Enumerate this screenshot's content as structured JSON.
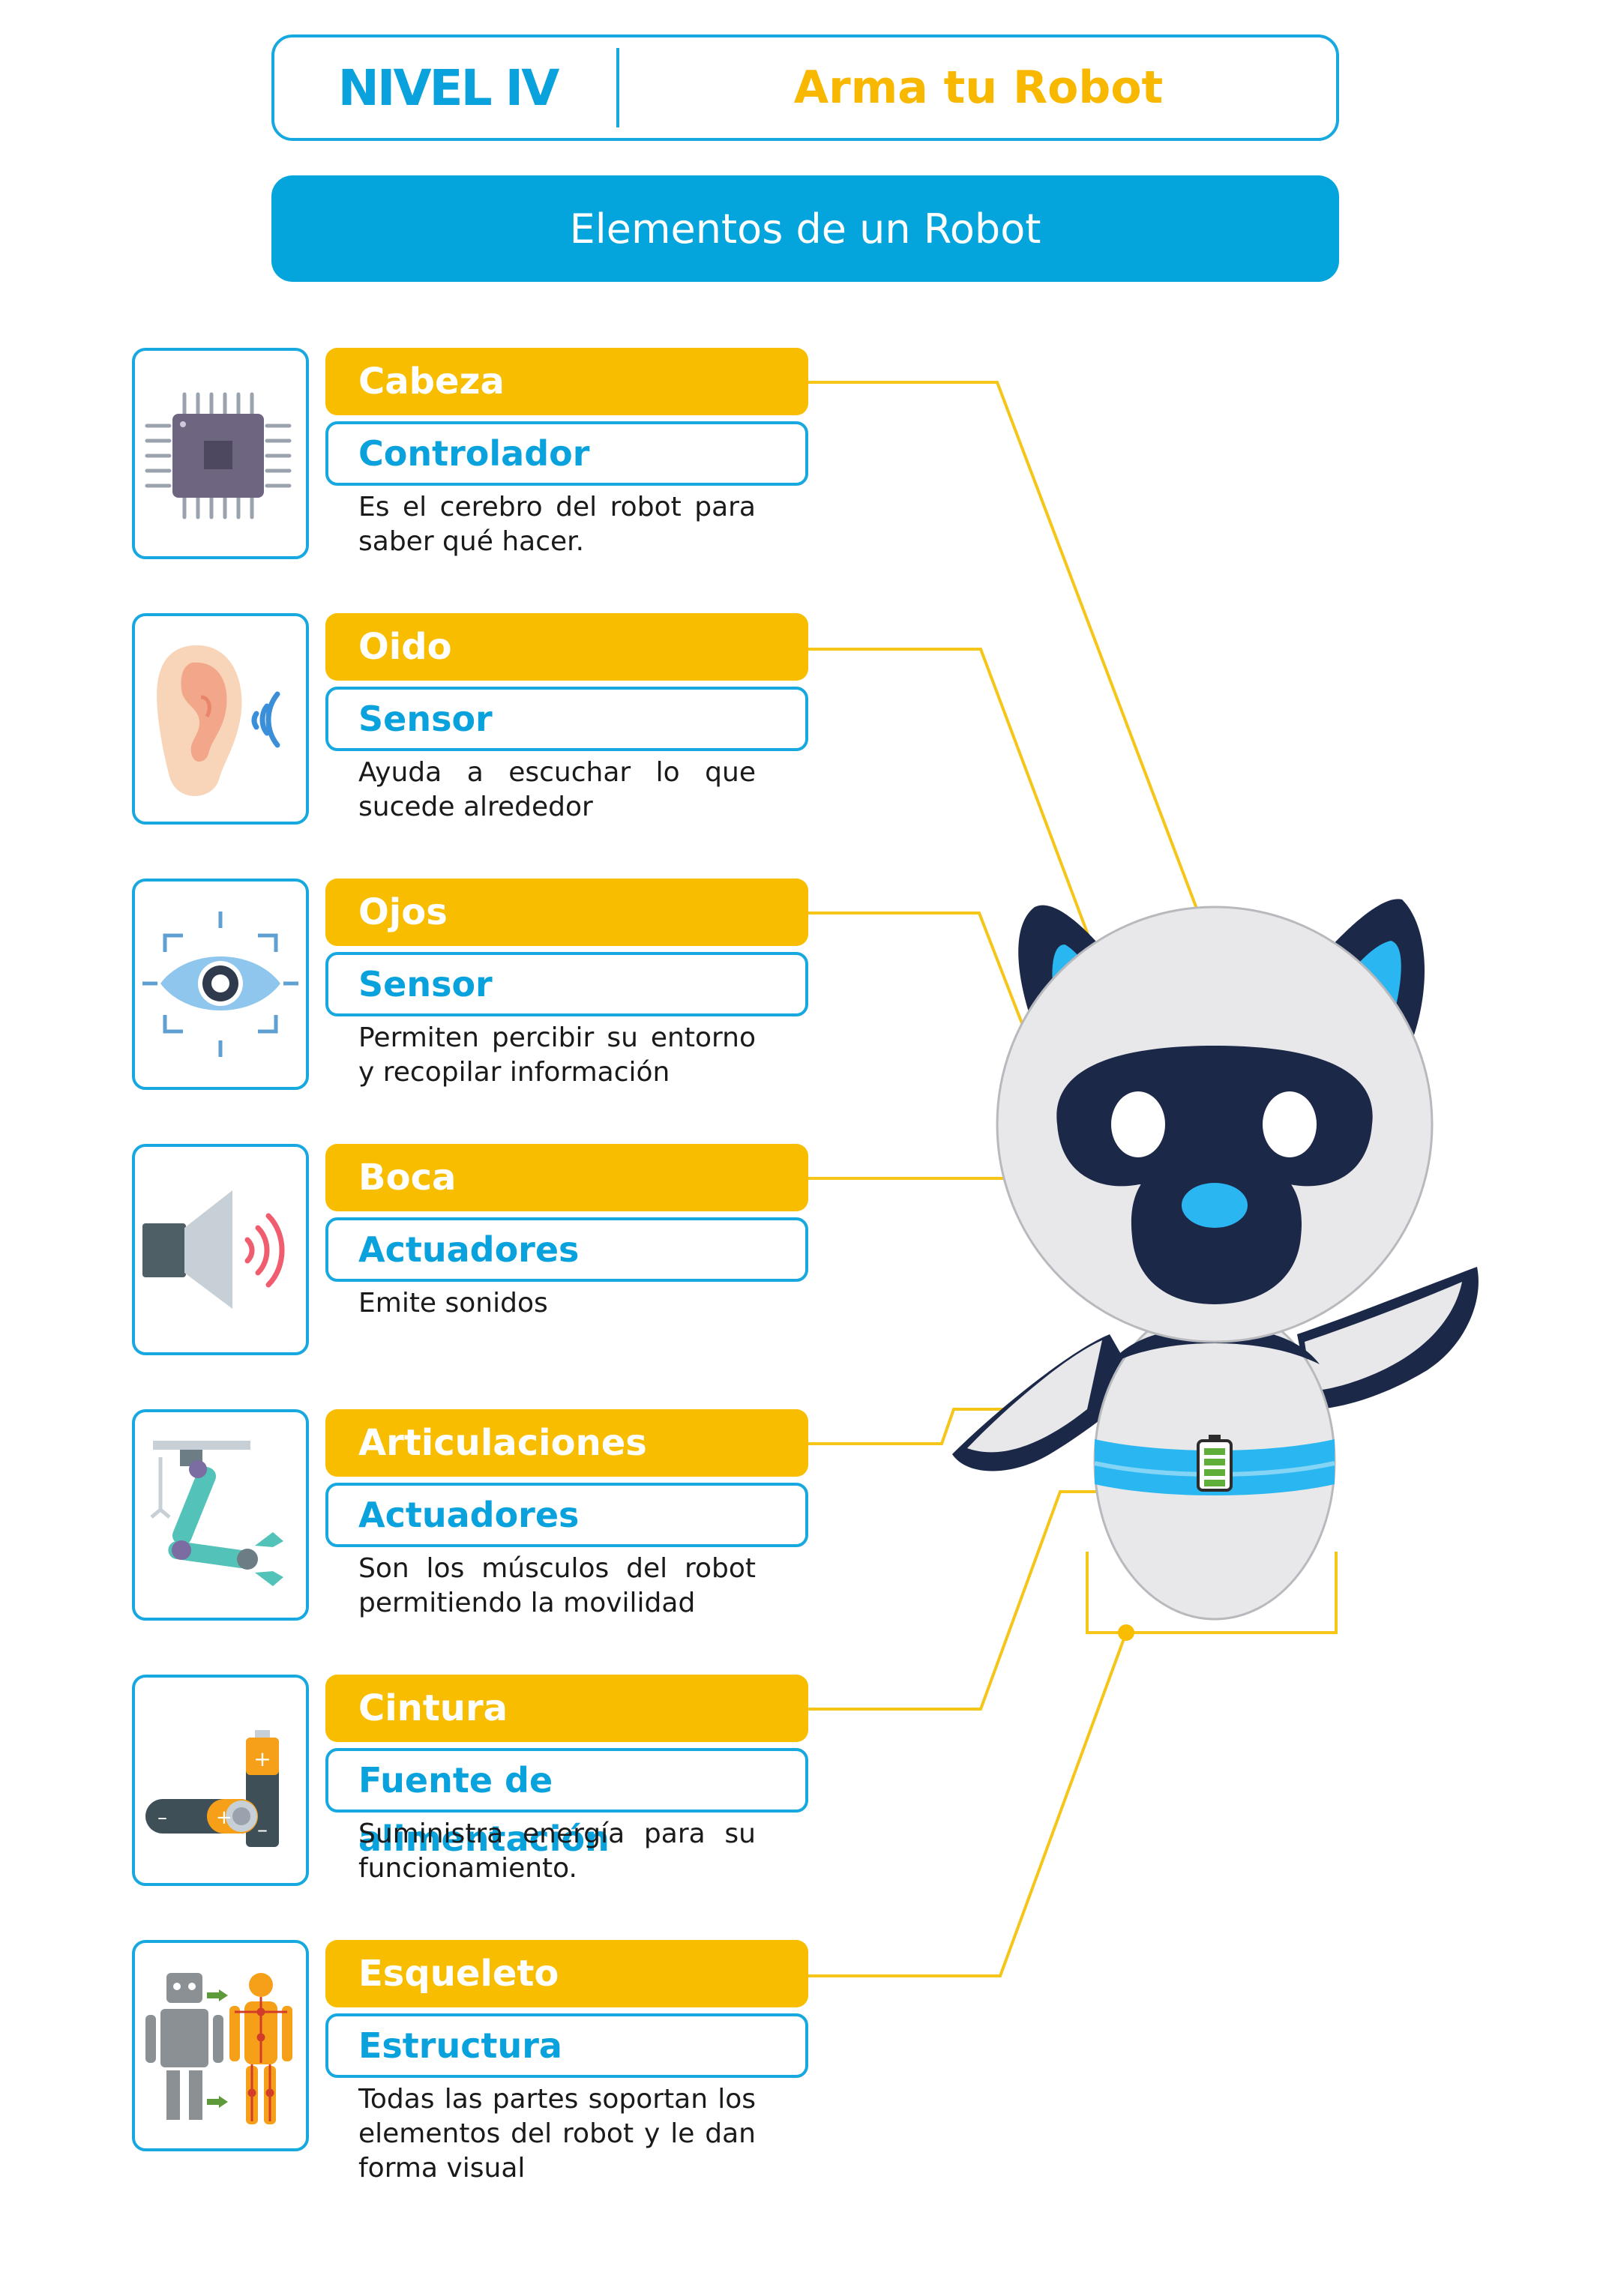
{
  "header": {
    "level": "NIVEL IV",
    "title": "Arma tu Robot"
  },
  "banner": "Elementos de un Robot",
  "parts": [
    {
      "part": "Cabeza",
      "role": "Controlador",
      "description": "Es el cerebro del robot para saber qué hacer.",
      "icon": "microchip-icon"
    },
    {
      "part": "Oido",
      "role": "Sensor",
      "description": "Ayuda a escuchar lo que sucede alrededor",
      "icon": "ear-icon"
    },
    {
      "part": "Ojos",
      "role": "Sensor",
      "description": "Permiten percibir su entorno y recopilar información",
      "icon": "eye-icon"
    },
    {
      "part": "Boca",
      "role": "Actuadores",
      "description": "Emite sonidos",
      "icon": "speaker-icon"
    },
    {
      "part": "Articulaciones",
      "role": "Actuadores",
      "description": "Son los músculos del robot permitiendo la movilidad",
      "icon": "robotic-arm-icon"
    },
    {
      "part": "Cintura",
      "role": "Fuente de alimentación",
      "description": "Suministra energía para su funcionamiento.",
      "icon": "battery-icon"
    },
    {
      "part": "Esqueleto",
      "role": "Estructura",
      "description": "Todas las partes soportan los elementos del robot y le dan forma visual",
      "icon": "skeleton-icon"
    }
  ],
  "colors": {
    "blue": "#0aa2dd",
    "yellow": "#f9bd00",
    "robot_dark": "#1c2848",
    "robot_light": "#e8e8ea",
    "robot_accent": "#2ab6f0"
  }
}
